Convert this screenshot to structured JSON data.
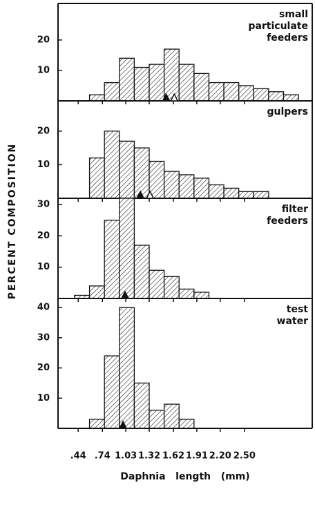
{
  "ylabel": "PERCENT COMPOSITION",
  "chart_data": [
    {
      "type": "histogram",
      "title": [
        "small",
        "particulate",
        "feeders"
      ],
      "color": "#111111",
      "bins": [
        0.58,
        0.765,
        0.95,
        1.135,
        1.32,
        1.505,
        1.69,
        1.875,
        2.06,
        2.245,
        2.43,
        2.615,
        2.8,
        2.985,
        3.17
      ],
      "values": [
        2,
        6,
        14,
        11,
        12,
        17,
        12,
        9,
        6,
        6,
        5,
        4,
        3,
        2
      ],
      "means": [
        1.53,
        1.63
      ],
      "xlim": [
        0.19,
        3.34
      ],
      "ylim": [
        0,
        32
      ],
      "yticks": [
        10,
        20
      ]
    },
    {
      "type": "histogram",
      "title": [
        "gulpers"
      ],
      "color": "#111111",
      "bins": [
        0.58,
        0.765,
        0.95,
        1.135,
        1.32,
        1.505,
        1.69,
        1.875,
        2.06,
        2.245,
        2.43,
        2.615,
        2.8
      ],
      "values": [
        12,
        20,
        17,
        15,
        11,
        8,
        7,
        6,
        4,
        3,
        2,
        2
      ],
      "means": [
        1.21,
        1.33
      ],
      "xlim": [
        0.19,
        3.34
      ],
      "ylim": [
        0,
        29
      ],
      "yticks": [
        10,
        20
      ]
    },
    {
      "type": "histogram",
      "title": [
        "filter",
        "feeders"
      ],
      "color": "#111111",
      "bins": [
        0.395,
        0.58,
        0.765,
        0.95,
        1.135,
        1.32,
        1.505,
        1.69,
        1.875,
        2.06
      ],
      "values": [
        1,
        4,
        25,
        32,
        17,
        9,
        7,
        3,
        2
      ],
      "means": [
        1.02
      ],
      "xlim": [
        0.19,
        3.34
      ],
      "ylim": [
        0,
        32
      ],
      "yticks": [
        10,
        20,
        30
      ]
    },
    {
      "type": "histogram",
      "title": [
        "test",
        "water"
      ],
      "color": "#111111",
      "bins": [
        0.58,
        0.765,
        0.95,
        1.135,
        1.32,
        1.505,
        1.69,
        1.875
      ],
      "values": [
        3,
        24,
        40,
        15,
        6,
        8,
        3
      ],
      "means": [
        0.995
      ],
      "xlim": [
        0.19,
        3.34
      ],
      "ylim": [
        0,
        43
      ],
      "yticks": [
        10,
        20,
        30,
        40
      ],
      "xlabel": "Daphnia   length   (mm)",
      "xticks": [
        {
          "value": 0.44,
          "label": ".44"
        },
        {
          "value": 0.74,
          "label": ".74"
        },
        1.03,
        {
          "value": 1.32,
          "label": "1.32"
        },
        1.62,
        1.91,
        {
          "value": 2.2,
          "label": "2.20"
        },
        {
          "value": 2.5,
          "label": "2.50"
        }
      ]
    }
  ]
}
